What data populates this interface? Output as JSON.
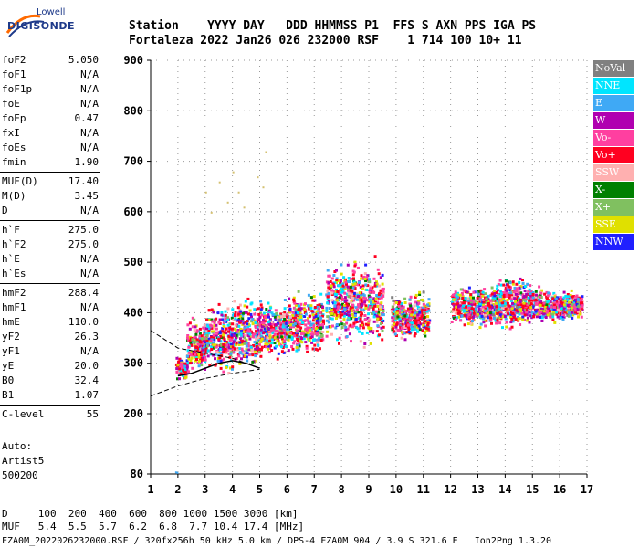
{
  "logo": {
    "top": "Lowell",
    "bottom": "DIGISONDE"
  },
  "header": {
    "line1": "Station    YYYY DAY   DDD HHMMSS P1  FFS S AXN PPS IGA PS",
    "line2": "Fortaleza 2022 Jan26 026 232000 RSF    1 714 100 10+ 11"
  },
  "params_group1": [
    {
      "name": "foF2",
      "value": "5.050"
    },
    {
      "name": "foF1",
      "value": "N/A"
    },
    {
      "name": "foF1p",
      "value": "N/A"
    },
    {
      "name": "foE",
      "value": "N/A"
    },
    {
      "name": "foEp",
      "value": "0.47"
    },
    {
      "name": "fxI",
      "value": "N/A"
    },
    {
      "name": "foEs",
      "value": "N/A"
    },
    {
      "name": "fmin",
      "value": "1.90"
    }
  ],
  "params_group2": [
    {
      "name": "MUF(D)",
      "value": "17.40"
    },
    {
      "name": "M(D)",
      "value": "3.45"
    },
    {
      "name": "D",
      "value": "N/A"
    }
  ],
  "params_group3": [
    {
      "name": "h`F",
      "value": "275.0"
    },
    {
      "name": "h`F2",
      "value": "275.0"
    },
    {
      "name": "h`E",
      "value": "N/A"
    },
    {
      "name": "h`Es",
      "value": "N/A"
    }
  ],
  "params_group4": [
    {
      "name": "hmF2",
      "value": "288.4"
    },
    {
      "name": "hmF1",
      "value": "N/A"
    },
    {
      "name": "hmE",
      "value": "110.0"
    },
    {
      "name": "yF2",
      "value": "26.3"
    },
    {
      "name": "yF1",
      "value": "N/A"
    },
    {
      "name": "yE",
      "value": "20.0"
    },
    {
      "name": "B0",
      "value": "32.4"
    },
    {
      "name": "B1",
      "value": "1.07"
    }
  ],
  "params_group5": [
    {
      "name": "C-level",
      "value": "55"
    }
  ],
  "auto": {
    "line1": "Auto:",
    "line2": "Artist5",
    "line3": "500200"
  },
  "footer": {
    "line1": "D     100  200  400  600  800 1000 1500 3000 [km]",
    "line2": "MUF   5.4  5.5  5.7  6.2  6.8  7.7 10.4 17.4 [MHz]",
    "line3": "FZA0M_2022026232000.RSF / 320fx256h 50 kHz 5.0 km / DPS-4 FZA0M 904 / 3.9 S 321.6 E   Ion2Png 1.3.20"
  },
  "legend": [
    {
      "label": "NoVal",
      "color": "#808080"
    },
    {
      "label": "NNE",
      "color": "#00e5ff"
    },
    {
      "label": "E",
      "color": "#3fa9f5"
    },
    {
      "label": "W",
      "color": "#b000b0"
    },
    {
      "label": "Vo-",
      "color": "#ff3fa0"
    },
    {
      "label": "Vo+",
      "color": "#ff0020"
    },
    {
      "label": "SSW",
      "color": "#ffb0b0"
    },
    {
      "label": "X-",
      "color": "#008000"
    },
    {
      "label": "X+",
      "color": "#80c060"
    },
    {
      "label": "SSE",
      "color": "#e0e000"
    },
    {
      "label": "NNW",
      "color": "#2020ff"
    }
  ],
  "chart_data": {
    "type": "scatter",
    "xlim": [
      1,
      17
    ],
    "ylim": [
      80,
      900
    ],
    "x_ticks": [
      1,
      2,
      3,
      4,
      5,
      6,
      7,
      8,
      9,
      10,
      11,
      12,
      13,
      14,
      15,
      16,
      17
    ],
    "y_ticks": [
      80,
      200,
      300,
      400,
      500,
      600,
      700,
      800,
      900
    ],
    "grid": true,
    "legend_position": "right",
    "echo_bands": [
      {
        "fmin": 1.9,
        "fmax": 2.3,
        "hmin": 265,
        "hmax": 320
      },
      {
        "fmin": 2.3,
        "fmax": 3.0,
        "hmin": 275,
        "hmax": 400
      },
      {
        "fmin": 3.0,
        "fmax": 4.0,
        "hmin": 270,
        "hmax": 430
      },
      {
        "fmin": 4.0,
        "fmax": 5.0,
        "hmin": 285,
        "hmax": 440
      },
      {
        "fmin": 5.0,
        "fmax": 6.0,
        "hmin": 300,
        "hmax": 440
      },
      {
        "fmin": 6.0,
        "fmax": 7.3,
        "hmin": 310,
        "hmax": 450
      },
      {
        "fmin": 7.4,
        "fmax": 9.5,
        "hmin": 320,
        "hmax": 520
      },
      {
        "fmin": 9.8,
        "fmax": 11.2,
        "hmin": 340,
        "hmax": 450
      },
      {
        "fmin": 12.0,
        "fmax": 13.8,
        "hmin": 370,
        "hmax": 460
      },
      {
        "fmin": 13.6,
        "fmax": 15.2,
        "hmin": 360,
        "hmax": 480
      },
      {
        "fmin": 15.2,
        "fmax": 16.8,
        "hmin": 380,
        "hmax": 450
      }
    ],
    "stray_points": [
      {
        "f": 1.9,
        "h": 85
      },
      {
        "f": 1.95,
        "h": 84
      },
      {
        "f": 3.0,
        "h": 640
      },
      {
        "f": 3.2,
        "h": 600
      },
      {
        "f": 3.5,
        "h": 660
      },
      {
        "f": 3.8,
        "h": 620
      },
      {
        "f": 4.0,
        "h": 680
      },
      {
        "f": 4.2,
        "h": 640
      },
      {
        "f": 4.4,
        "h": 610
      },
      {
        "f": 4.9,
        "h": 670
      },
      {
        "f": 5.2,
        "h": 720
      },
      {
        "f": 5.1,
        "h": 650
      }
    ],
    "trace_h_virtual": [
      [
        2.0,
        275
      ],
      [
        2.5,
        280
      ],
      [
        3.0,
        290
      ],
      [
        3.5,
        300
      ],
      [
        4.0,
        305
      ],
      [
        4.5,
        300
      ],
      [
        5.0,
        290
      ]
    ],
    "profile_upper": [
      [
        1.0,
        365
      ],
      [
        2.0,
        330
      ],
      [
        3.0,
        320
      ],
      [
        4.0,
        310
      ],
      [
        5.0,
        290
      ]
    ],
    "profile_lower": [
      [
        1.0,
        235
      ],
      [
        2.0,
        255
      ],
      [
        3.0,
        270
      ],
      [
        4.0,
        280
      ],
      [
        5.0,
        288
      ]
    ]
  }
}
